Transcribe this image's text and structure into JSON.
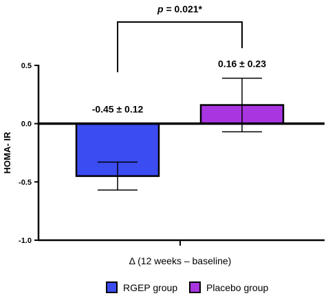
{
  "chart_data": {
    "type": "bar",
    "ylabel": "HOMA- IR",
    "xlabel": "Δ (12 weeks – baseline)",
    "ylim": [
      -1.0,
      0.5
    ],
    "yticks": [
      0.5,
      0.0,
      -0.5,
      -1.0
    ],
    "ytick_labels": [
      "0.5",
      "0.0",
      "-0.5",
      "-1.0"
    ],
    "legend_position": "bottom",
    "series": [
      {
        "name": "RGEP group",
        "value": -0.45,
        "error": 0.12,
        "color": "#3b4cf0",
        "label": "-0.45 ± 0.12"
      },
      {
        "name": "Placebo group",
        "value": 0.16,
        "error": 0.23,
        "color": "#a935e0",
        "label": "0.16 ± 0.23"
      }
    ],
    "significance": {
      "p_prefix": "p",
      "p_rest": " = 0.021*"
    }
  }
}
